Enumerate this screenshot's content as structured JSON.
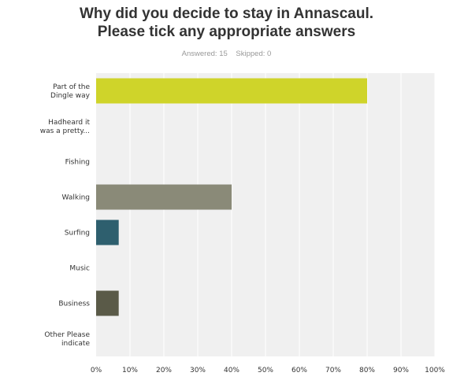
{
  "title": {
    "line1": "Why did you decide to stay in Annascaul.",
    "line2": "Please tick any appropriate answers"
  },
  "stats": {
    "answered": "Answered: 15",
    "skipped": "Skipped: 0"
  },
  "chart_data": {
    "type": "bar",
    "orientation": "horizontal",
    "categories": [
      [
        "Part of the",
        "Dingle way"
      ],
      [
        "Hadheard it",
        "was a pretty..."
      ],
      [
        "Fishing"
      ],
      [
        "Walking"
      ],
      [
        "Surfing"
      ],
      [
        "Music"
      ],
      [
        "Business"
      ],
      [
        "Other Please",
        "indicate"
      ]
    ],
    "values": [
      80,
      0,
      0,
      40,
      6.67,
      0,
      6.67,
      0
    ],
    "colors": [
      "#cfd42a",
      "#cfd42a",
      "#cfd42a",
      "#8a8a78",
      "#2e5f6e",
      "#cccccc",
      "#5a5a48",
      "#cccccc"
    ],
    "xlim": [
      0,
      100
    ],
    "ticks": [
      "0%",
      "10%",
      "20%",
      "30%",
      "40%",
      "50%",
      "60%",
      "70%",
      "80%",
      "90%",
      "100%"
    ],
    "grid": true,
    "background": "#f0f0f0"
  }
}
